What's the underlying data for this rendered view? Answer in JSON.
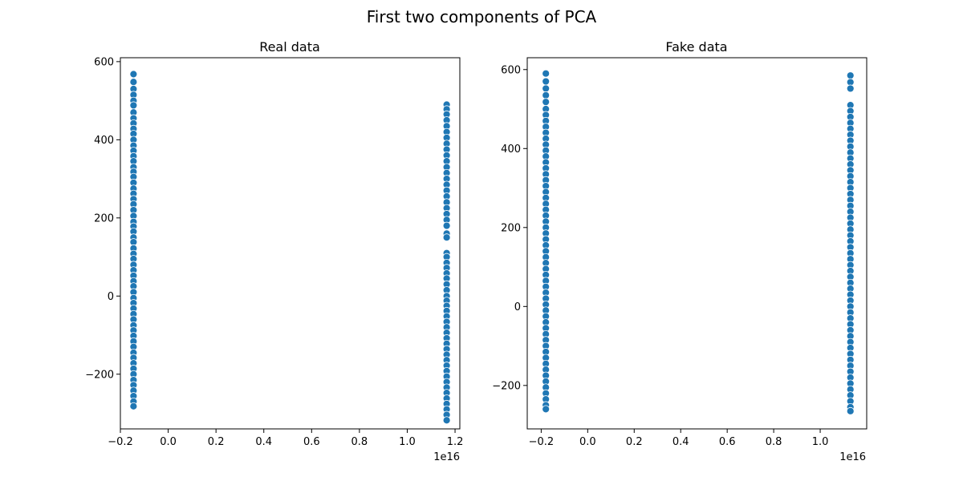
{
  "chart_data": {
    "title": "First two components of PCA",
    "point_color": "#1f77b4",
    "point_edge_color": "#ffffff",
    "panels": [
      {
        "type": "scatter",
        "title": "Real data",
        "x_offset_label": "1e16",
        "xlim": [
          -0.2,
          1.22
        ],
        "ylim": [
          -340,
          610
        ],
        "xticks": [
          -0.2,
          0.0,
          0.2,
          0.4,
          0.6,
          0.8,
          1.0,
          1.2
        ],
        "xtick_labels": [
          "−0.2",
          "0.0",
          "0.2",
          "0.4",
          "0.6",
          "0.8",
          "1.0",
          "1.2"
        ],
        "yticks": [
          -200,
          0,
          200,
          400,
          600
        ],
        "ytick_labels": [
          "−200",
          "0",
          "200",
          "400",
          "600"
        ],
        "clusters": [
          {
            "x": -0.145,
            "y_values": [
              568,
              548,
              530,
              515,
              500,
              488,
              470,
              455,
              442,
              428,
              415,
              400,
              385,
              372,
              358,
              345,
              330,
              318,
              305,
              290,
              275,
              262,
              248,
              235,
              220,
              205,
              190,
              178,
              165,
              150,
              138,
              122,
              108,
              95,
              80,
              66,
              52,
              38,
              25,
              10,
              -5,
              -18,
              -32,
              -46,
              -60,
              -75,
              -88,
              -102,
              -116,
              -130,
              -145,
              -158,
              -172,
              -186,
              -200,
              -215,
              -228,
              -242,
              -256,
              -270,
              -282
            ]
          },
          {
            "x": 1.165,
            "y_values": [
              490,
              478,
              465,
              450,
              435,
              420,
              405,
              390,
              375,
              360,
              345,
              330,
              315,
              300,
              285,
              270,
              255,
              240,
              225,
              210,
              195,
              180,
              160,
              150,
              110,
              100,
              85,
              72,
              58,
              45,
              30,
              15,
              0,
              -12,
              -25,
              -38,
              -52,
              -66,
              -80,
              -94,
              -108,
              -122,
              -136,
              -150,
              -164,
              -178,
              -192,
              -206,
              -220,
              -234,
              -248,
              -262,
              -276,
              -290,
              -304,
              -318
            ]
          }
        ]
      },
      {
        "type": "scatter",
        "title": "Fake data",
        "x_offset_label": "1e16",
        "xlim": [
          -0.26,
          1.2
        ],
        "ylim": [
          -310,
          630
        ],
        "xticks": [
          -0.2,
          0.0,
          0.2,
          0.4,
          0.6,
          0.8,
          1.0
        ],
        "xtick_labels": [
          "−0.2",
          "0.0",
          "0.2",
          "0.4",
          "0.6",
          "0.8",
          "1.0"
        ],
        "yticks": [
          -200,
          0,
          200,
          400,
          600
        ],
        "ytick_labels": [
          "−200",
          "0",
          "200",
          "400",
          "600"
        ],
        "clusters": [
          {
            "x": -0.18,
            "y_values": [
              590,
              570,
              552,
              535,
              518,
              500,
              485,
              470,
              455,
              440,
              425,
              410,
              395,
              380,
              365,
              350,
              335,
              320,
              305,
              290,
              275,
              260,
              245,
              230,
              215,
              200,
              185,
              170,
              155,
              140,
              125,
              110,
              95,
              80,
              65,
              50,
              35,
              20,
              5,
              -10,
              -25,
              -40,
              -55,
              -70,
              -85,
              -100,
              -115,
              -130,
              -145,
              -160,
              -175,
              -190,
              -205,
              -220,
              -235,
              -250,
              -260
            ]
          },
          {
            "x": 1.13,
            "y_values": [
              585,
              568,
              552,
              510,
              495,
              480,
              465,
              450,
              435,
              420,
              405,
              390,
              375,
              360,
              345,
              330,
              315,
              300,
              285,
              270,
              255,
              240,
              225,
              210,
              195,
              180,
              165,
              150,
              135,
              120,
              105,
              90,
              75,
              60,
              45,
              30,
              15,
              0,
              -15,
              -30,
              -45,
              -60,
              -75,
              -90,
              -105,
              -120,
              -135,
              -150,
              -165,
              -180,
              -195,
              -210,
              -225,
              -240,
              -255,
              -265
            ]
          }
        ]
      }
    ]
  }
}
